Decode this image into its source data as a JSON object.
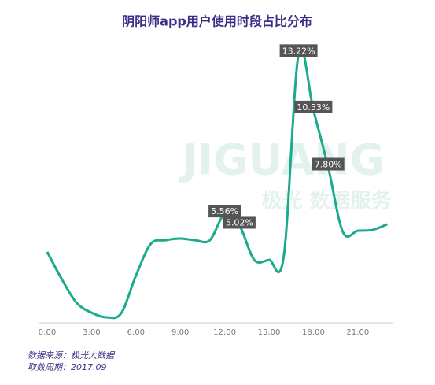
{
  "chart_data": {
    "type": "line",
    "title": "阴阳师app用户使用时段占比分布",
    "watermark": "JIGUANG",
    "watermark_subtitle": "极光 数据服务",
    "categories": [
      "0:00",
      null,
      null,
      "3:00",
      null,
      null,
      "6:00",
      null,
      null,
      "9:00",
      null,
      null,
      "12:00",
      null,
      null,
      "15:00",
      null,
      null,
      "18:00",
      null,
      null,
      "21:00",
      null,
      null
    ],
    "values": [
      3.76,
      2.44,
      1.32,
      0.86,
      0.64,
      0.83,
      2.63,
      4.14,
      4.32,
      4.4,
      4.32,
      4.32,
      5.56,
      5.02,
      3.38,
      3.38,
      3.57,
      13.22,
      10.53,
      7.8,
      4.7,
      4.77,
      4.81,
      5.08
    ],
    "value_labels": [
      null,
      null,
      null,
      null,
      null,
      null,
      null,
      null,
      null,
      null,
      null,
      null,
      "5.56%",
      "5.02%",
      null,
      null,
      null,
      "13.22%",
      "10.53%",
      "7.80%",
      null,
      null,
      null,
      null
    ],
    "color": "#1aaa8c",
    "ylim": [
      0,
      14
    ],
    "grid": false,
    "source": "数据来源：极光大数据",
    "period": "取数周期：2017.09"
  }
}
